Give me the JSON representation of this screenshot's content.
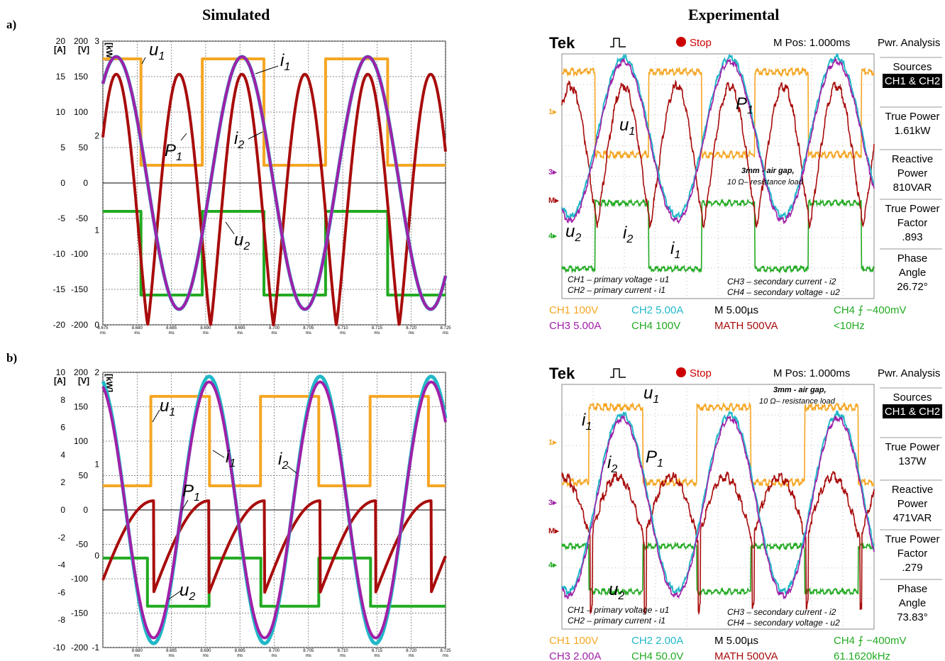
{
  "headings": {
    "simulated": "Simulated",
    "experimental": "Experimental"
  },
  "panel_labels": [
    "a)",
    "b)"
  ],
  "colors": {
    "u1": "#f5a623",
    "i1": "#22b8c8",
    "i2": "#a020a8",
    "P1": "#a80c0c",
    "u2": "#22aa22",
    "scope_bg": "#ffffff",
    "grid": "#999999"
  },
  "sim_plots": [
    {
      "axis_units": {
        "A": "[A]",
        "V": "[V]",
        "kW": "[kW]"
      },
      "A_ticks": [
        "20",
        "15",
        "10",
        "5",
        "0",
        "-5",
        "-10",
        "-15",
        "-20"
      ],
      "V_ticks": [
        "200",
        "150",
        "100",
        "50",
        "0",
        "-50",
        "-100",
        "-150",
        "-200"
      ],
      "kW_ticks": [
        "3",
        "2",
        "1",
        "0"
      ],
      "x_ticks": [
        "8.675",
        "8.680",
        "8.685",
        "8.690",
        "8.695",
        "8.700",
        "8.705",
        "8.710",
        "8.715",
        "8.720",
        "8.725"
      ],
      "x_unit": "ms",
      "curve_labels": {
        "u1": "u",
        "u1_sub": "1",
        "i1": "i",
        "i1_sub": "1",
        "i2": "i",
        "i2_sub": "2",
        "P1": "P",
        "P1_sub": "1",
        "u2": "u",
        "u2_sub": "2"
      }
    },
    {
      "axis_units": {
        "A": "[A]",
        "V": "[V]",
        "kW": "[kW]"
      },
      "A_ticks": [
        "10",
        "8",
        "6",
        "4",
        "2",
        "0",
        "-2",
        "-4",
        "-6",
        "-8",
        "-10"
      ],
      "V_ticks": [
        "200",
        "150",
        "100",
        "50",
        "0",
        "-50",
        "-100",
        "-150",
        "-200"
      ],
      "kW_ticks": [
        "2",
        "1",
        "0",
        "-1"
      ],
      "x_ticks": [
        "8.680",
        "8.685",
        "8.690",
        "8.695",
        "8.700",
        "8.705",
        "8.710",
        "8.715",
        "8.720",
        "8.725"
      ],
      "x_unit": "ms",
      "curve_labels": {
        "u1": "u",
        "u1_sub": "1",
        "i1": "i",
        "i1_sub": "1",
        "i2": "i",
        "i2_sub": "2",
        "P1": "P",
        "P1_sub": "1",
        "u2": "u",
        "u2_sub": "2"
      }
    }
  ],
  "scopes": [
    {
      "brand": "Tek",
      "state": "Stop",
      "mpos": "M Pos: 1.000ms",
      "mode": "Pwr. Analysis",
      "side": [
        {
          "title": "Sources",
          "value": "CH1 & CH2",
          "highlight": true
        },
        {
          "title": "True Power",
          "value": "1.61kW"
        },
        {
          "title": "Reactive\nPower",
          "value": "810VAR"
        },
        {
          "title": "True Power\nFactor",
          "value": ".893"
        },
        {
          "title": "Phase\nAngle",
          "value": "26.72°"
        }
      ],
      "bottom": {
        "ch1": "CH1  100V",
        "ch2": "CH2  5.00A",
        "m": "M 5.00µs",
        "ch4trig": "CH4 ⨍ −400mV",
        "ch3": "CH3  5.00A",
        "ch4": "CH4  100V",
        "math": "MATH 500VA",
        "freq": "<10Hz"
      },
      "annotation": [
        "3mm - air gap,",
        "10 Ω– resistance load"
      ],
      "legend_left": [
        "CH1 – primary voltage - u1",
        "CH2 – primary current - i1"
      ],
      "legend_right": [
        "CH3 – secondary current - i2",
        "CH4 – secondary voltage - u2"
      ],
      "markers": [
        "1▸",
        "3▸",
        "M▸",
        "4▸"
      ]
    },
    {
      "brand": "Tek",
      "state": "Stop",
      "mpos": "M Pos: 1.000ms",
      "mode": "Pwr. Analysis",
      "side": [
        {
          "title": "Sources",
          "value": "CH1 & CH2",
          "highlight": true
        },
        {
          "title": "True Power",
          "value": "137W"
        },
        {
          "title": "Reactive\nPower",
          "value": "471VAR"
        },
        {
          "title": "True Power\nFactor",
          "value": ".279"
        },
        {
          "title": "Phase\nAngle",
          "value": "73.83°"
        }
      ],
      "bottom": {
        "ch1": "CH1  100V",
        "ch2": "CH2  2.00A",
        "m": "M 5.00µs",
        "ch4trig": "CH4 ⨍ −400mV",
        "ch3": "CH3  2.00A",
        "ch4": "CH4  50.0V",
        "math": "MATH 500VA",
        "freq": "61.1620kHz"
      },
      "annotation": [
        "3mm - air gap,",
        "10 Ω– resistance load"
      ],
      "legend_left": [
        "CH1 – primary voltage - u1",
        "CH2 – primary current - i1"
      ],
      "legend_right": [
        "CH3 – secondary current - i2",
        "CH4 – secondary voltage - u2"
      ],
      "markers": [
        "1▸",
        "3▸",
        "M▸",
        "4▸"
      ]
    }
  ],
  "chart_data": [
    {
      "type": "line",
      "title": "Simulated (a)",
      "xlabel": "ms",
      "x_range": [
        8.675,
        8.725
      ],
      "ylim_A": [
        -20,
        20
      ],
      "ylim_V": [
        -200,
        200
      ],
      "ylim_kW": [
        0,
        3
      ],
      "series": [
        {
          "name": "u1",
          "units": "V",
          "shape": "square",
          "high": 175,
          "low": 25,
          "high_intervals_ms": [
            [
              8.675,
              8.6805
            ],
            [
              8.6895,
              8.6985
            ],
            [
              8.7075,
              8.7165
            ]
          ]
        },
        {
          "name": "u2",
          "units": "V",
          "shape": "square",
          "high": -40,
          "low": -158,
          "high_intervals_ms": [
            [
              8.675,
              8.6805
            ],
            [
              8.6895,
              8.6985
            ],
            [
              8.7075,
              8.7165
            ]
          ]
        },
        {
          "name": "i1",
          "units": "A",
          "shape": "sine",
          "amplitude": 17.8,
          "period_ms": 0.01835,
          "peak_at_ms": 8.6953
        },
        {
          "name": "i2",
          "units": "A",
          "shape": "sine",
          "amplitude": 17.8,
          "period_ms": 0.01835,
          "peak_at_ms": 8.6953
        },
        {
          "name": "P1",
          "units": "kW",
          "shape": "rectified",
          "peak": 2.65,
          "min": 0.0,
          "period_ms": 0.00918
        }
      ]
    },
    {
      "type": "line",
      "title": "Simulated (b)",
      "xlabel": "ms",
      "x_range": [
        8.676,
        8.726
      ],
      "ylim_A": [
        -10,
        10
      ],
      "ylim_V": [
        -200,
        200
      ],
      "ylim_kW": [
        -1,
        2
      ],
      "series": [
        {
          "name": "u1",
          "units": "V",
          "shape": "square",
          "high": 165,
          "low": 35,
          "high_intervals_ms": [
            [
              8.683,
              8.6915
            ],
            [
              8.699,
              8.7075
            ],
            [
              8.715,
              8.7235
            ]
          ]
        },
        {
          "name": "u2",
          "units": "V",
          "shape": "square",
          "high": -70,
          "low": -140,
          "high_intervals_ms": [
            [
              8.676,
              8.6825
            ],
            [
              8.6915,
              8.699
            ],
            [
              8.7075,
              8.715
            ]
          ]
        },
        {
          "name": "i1",
          "units": "A",
          "shape": "sine",
          "amplitude": 9.7,
          "period_ms": 0.0162,
          "peak_at_ms": 8.6915
        },
        {
          "name": "i2",
          "units": "A",
          "shape": "sine",
          "amplitude": 9.3,
          "period_ms": 0.0162,
          "peak_at_ms": 8.6915
        },
        {
          "name": "P1",
          "units": "kW",
          "shape": "sawtooth",
          "peak": 0.6,
          "min": -0.4,
          "period_ms": 0.0081
        }
      ]
    }
  ]
}
